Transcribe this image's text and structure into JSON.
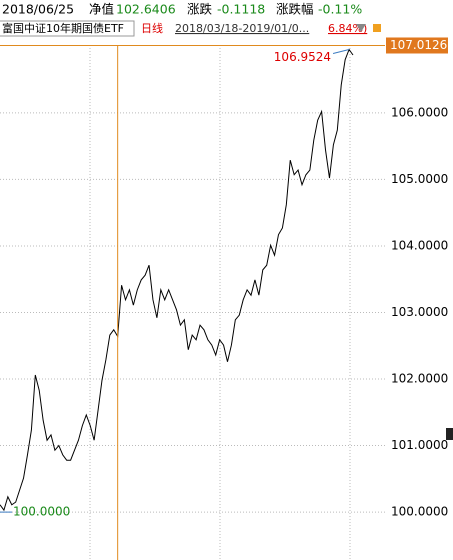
{
  "chart_data": {
    "type": "line",
    "header": {
      "date": "2018/06/25",
      "nav_label": "净值",
      "nav": 102.6406,
      "change_label": "涨跌",
      "change": -0.1118,
      "pct_label": "涨跌幅",
      "pct": "-0.11%"
    },
    "fund_name": "富国中证10年期国债ETF",
    "period": "日线",
    "range": "2018/03/18-2019/01/0...",
    "range_change": "6.84%)",
    "series": [
      {
        "name": "富国中证10年期国债ETF",
        "color": "#000000",
        "values": [
          100.11,
          100.03,
          100.23,
          100.11,
          100.15,
          100.33,
          100.51,
          100.86,
          101.23,
          102.06,
          101.83,
          101.38,
          101.08,
          101.16,
          100.93,
          101.0,
          100.86,
          100.78,
          100.78,
          100.93,
          101.08,
          101.3,
          101.46,
          101.3,
          101.08,
          101.53,
          101.98,
          102.29,
          102.66,
          102.74,
          102.6406,
          103.41,
          103.19,
          103.34,
          103.11,
          103.34,
          103.49,
          103.56,
          103.71,
          103.19,
          102.92,
          103.34,
          103.19,
          103.34,
          103.19,
          103.04,
          102.81,
          102.89,
          102.44,
          102.66,
          102.59,
          102.81,
          102.74,
          102.59,
          102.51,
          102.36,
          102.59,
          102.51,
          102.26,
          102.51,
          102.89,
          102.96,
          103.19,
          103.34,
          103.26,
          103.49,
          103.26,
          103.64,
          103.71,
          104.01,
          103.86,
          104.17,
          104.27,
          104.62,
          105.29,
          105.07,
          105.14,
          104.92,
          105.07,
          105.14,
          105.59,
          105.89,
          106.02,
          105.44,
          105.02,
          105.52,
          105.74,
          106.42,
          106.8,
          106.9524,
          106.87
        ]
      }
    ],
    "ylim": [
      99.28,
      107.02
    ],
    "yticks": [
      {
        "value": 100,
        "label": "100.0000"
      },
      {
        "value": 101,
        "label": "101.0000"
      },
      {
        "value": 102,
        "label": "102.0000"
      },
      {
        "value": 103,
        "label": "103.0000"
      },
      {
        "value": 104,
        "label": "104.0000"
      },
      {
        "value": 105,
        "label": "105.0000"
      },
      {
        "value": 106,
        "label": "106.0000"
      }
    ],
    "max_label": 106.9524,
    "min_label": {
      "value": 100,
      "label": "100.0000"
    },
    "price_line": 107.0126,
    "grid": true
  }
}
